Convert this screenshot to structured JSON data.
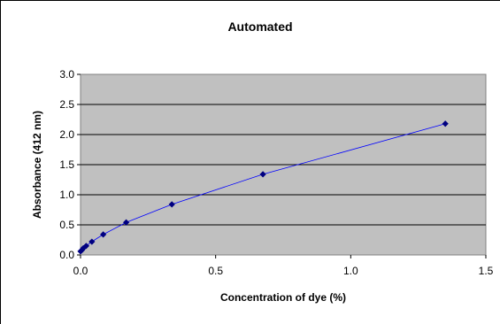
{
  "chart_data": {
    "type": "scatter",
    "title": "Automated",
    "xlabel": "Concentration of dye (%)",
    "ylabel": "Absorbance (412 nm)",
    "xlim": [
      0,
      1.5
    ],
    "ylim": [
      0,
      3.0
    ],
    "xticks": [
      "0.0",
      "0.5",
      "1.0",
      "1.5"
    ],
    "yticks": [
      "0.0",
      "0.5",
      "1.0",
      "1.5",
      "2.0",
      "2.5",
      "3.0"
    ],
    "grid": "horizontal",
    "plot_background": "#c0c0c0",
    "marker_color": "#000080",
    "line_color": "#0000ff",
    "series": [
      {
        "x": [
          0.0,
          0.005,
          0.01,
          0.021,
          0.042,
          0.084,
          0.169,
          0.338,
          0.675,
          1.35
        ],
        "y": [
          0.06,
          0.08,
          0.11,
          0.15,
          0.22,
          0.34,
          0.54,
          0.84,
          1.34,
          2.18
        ]
      }
    ]
  }
}
